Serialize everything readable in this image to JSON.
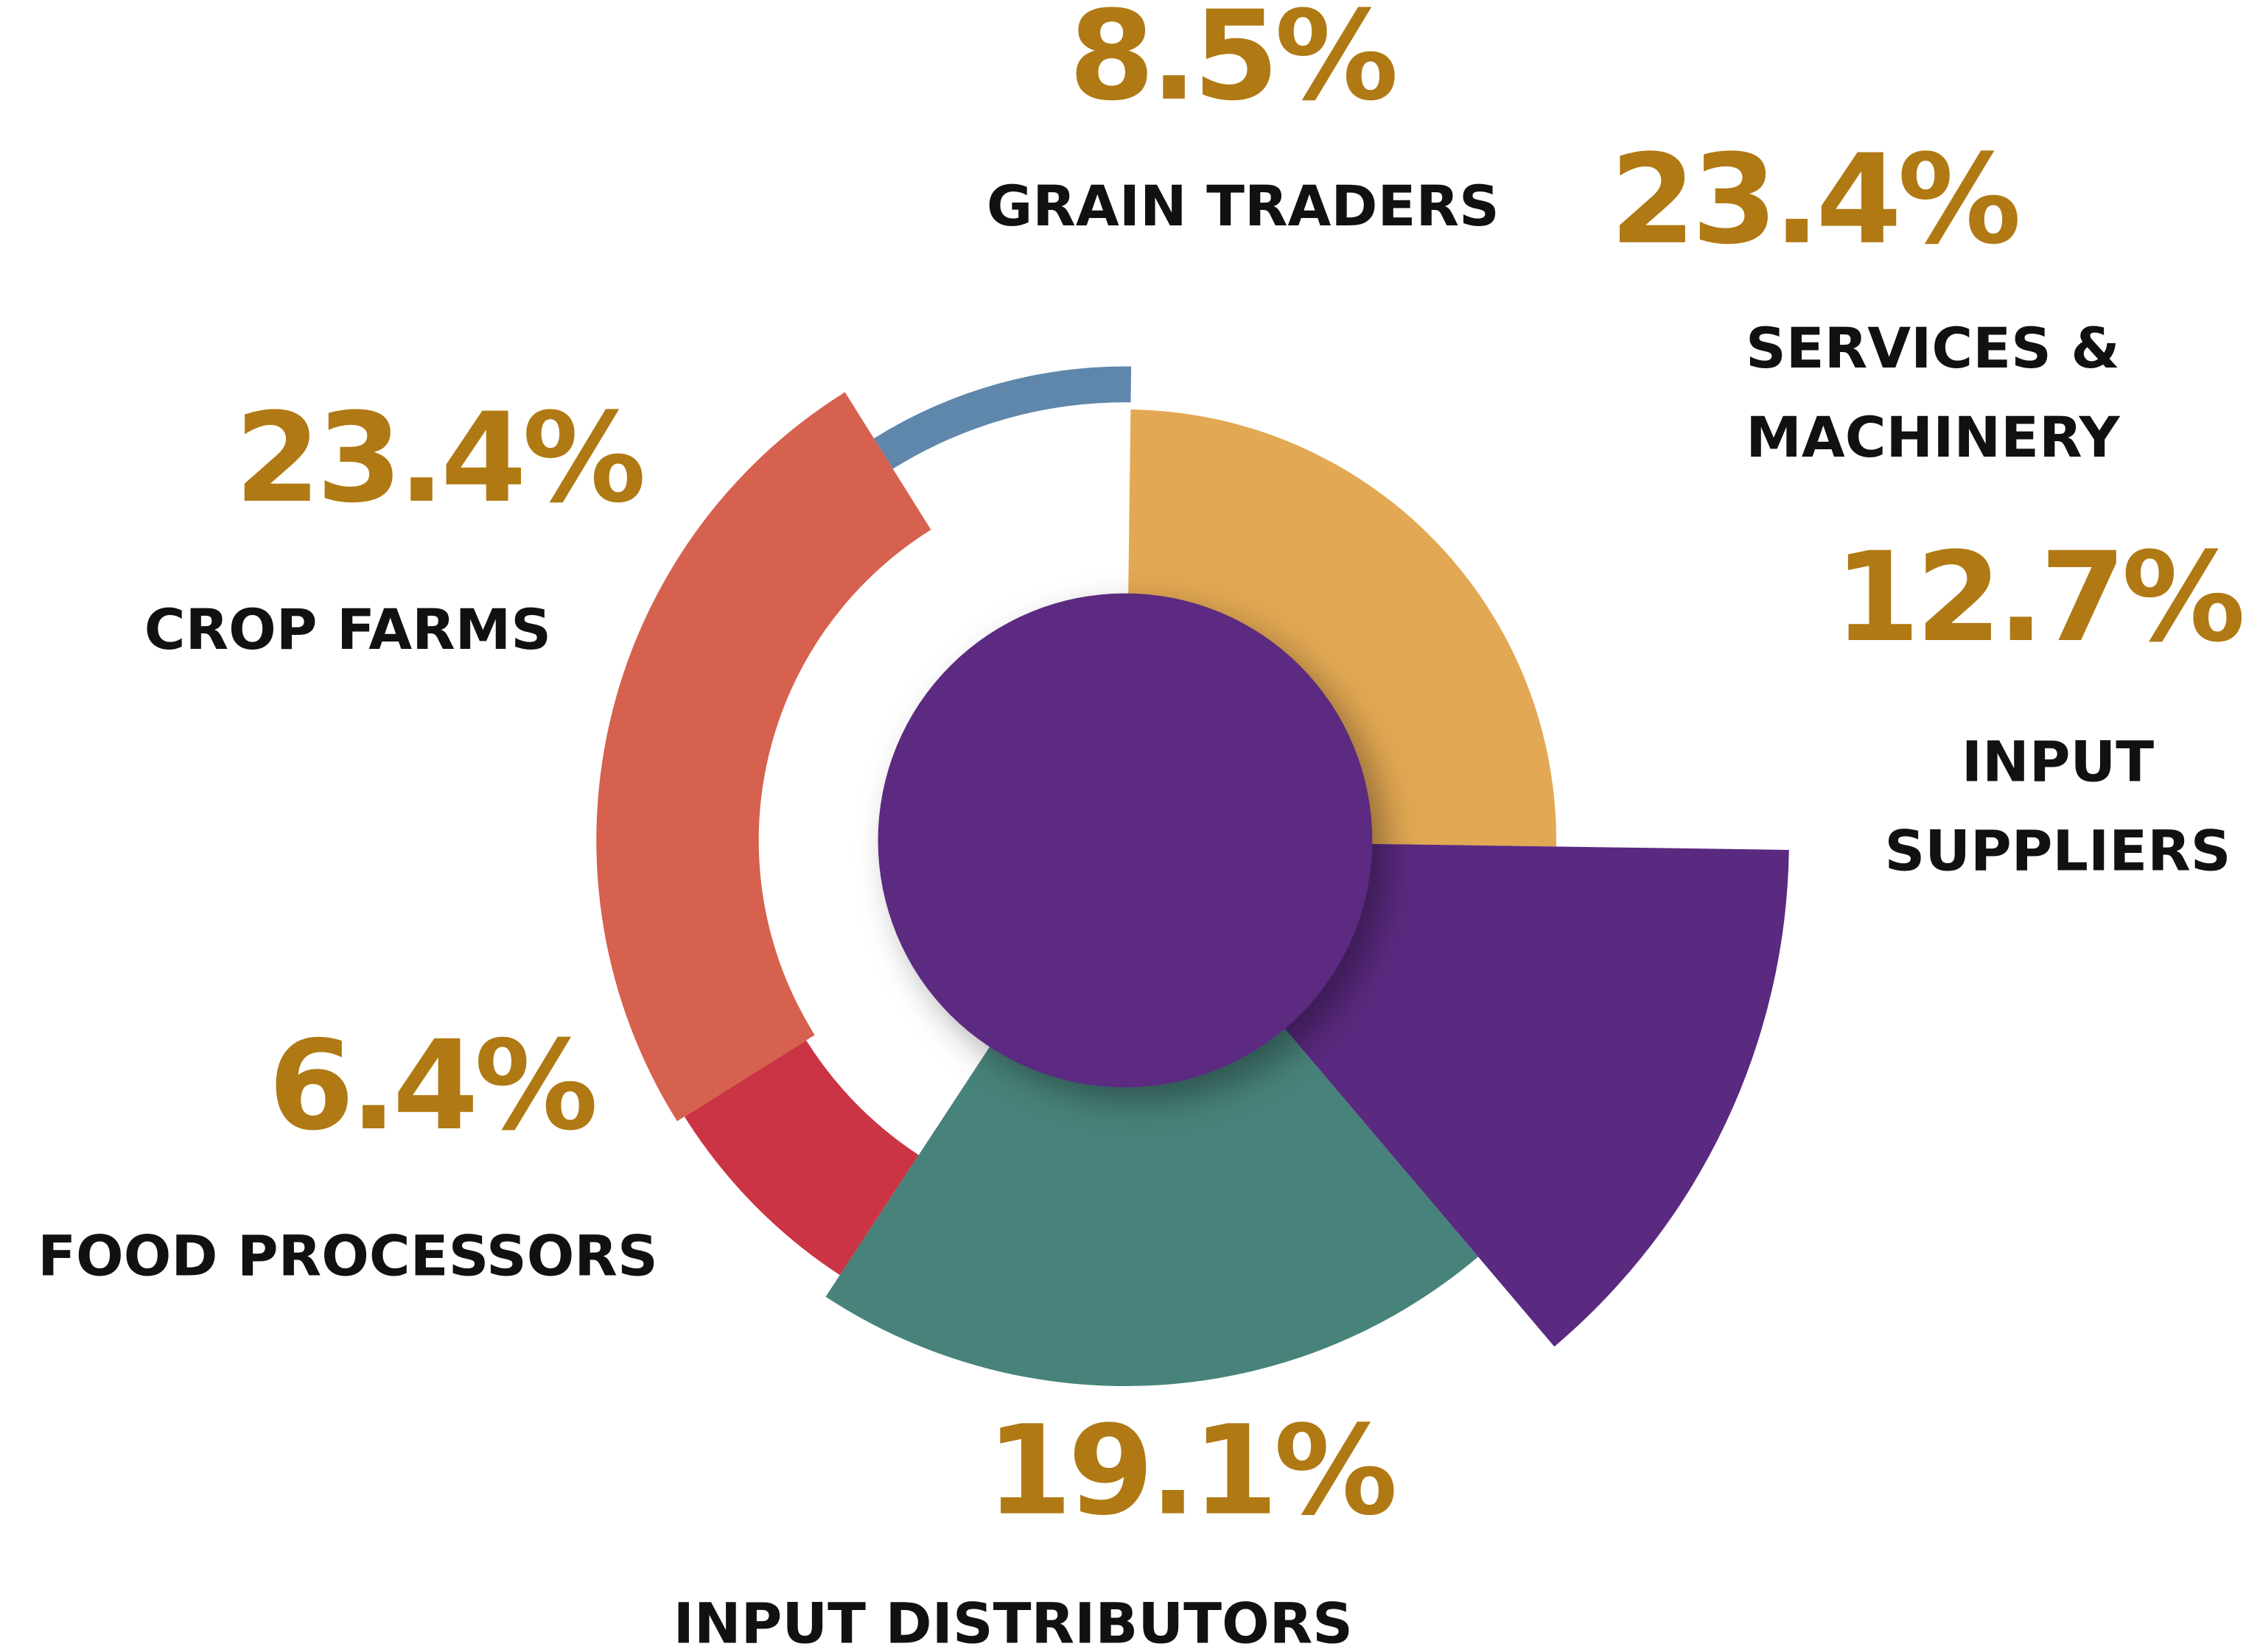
{
  "chart_data": {
    "type": "pie",
    "categories": [
      "GRAIN TRADERS",
      "SERVICES & MACHINERY",
      "INPUT SUPPLIERS",
      "INPUT DISTRIBUTORS",
      "FOOD PROCESSORS",
      "CROP FARMS"
    ],
    "values": [
      8.5,
      23.4,
      12.7,
      19.1,
      6.4,
      23.4
    ],
    "value_labels": [
      "8.5%",
      "23.4%",
      "12.7%",
      "19.1%",
      "6.4%",
      "23.4%"
    ],
    "colors": [
      "#5f87ab",
      "#e2a853",
      "#5a2980",
      "#47837a",
      "#cb3444",
      "#d6614e"
    ],
    "center_color": "#5b2b80"
  }
}
